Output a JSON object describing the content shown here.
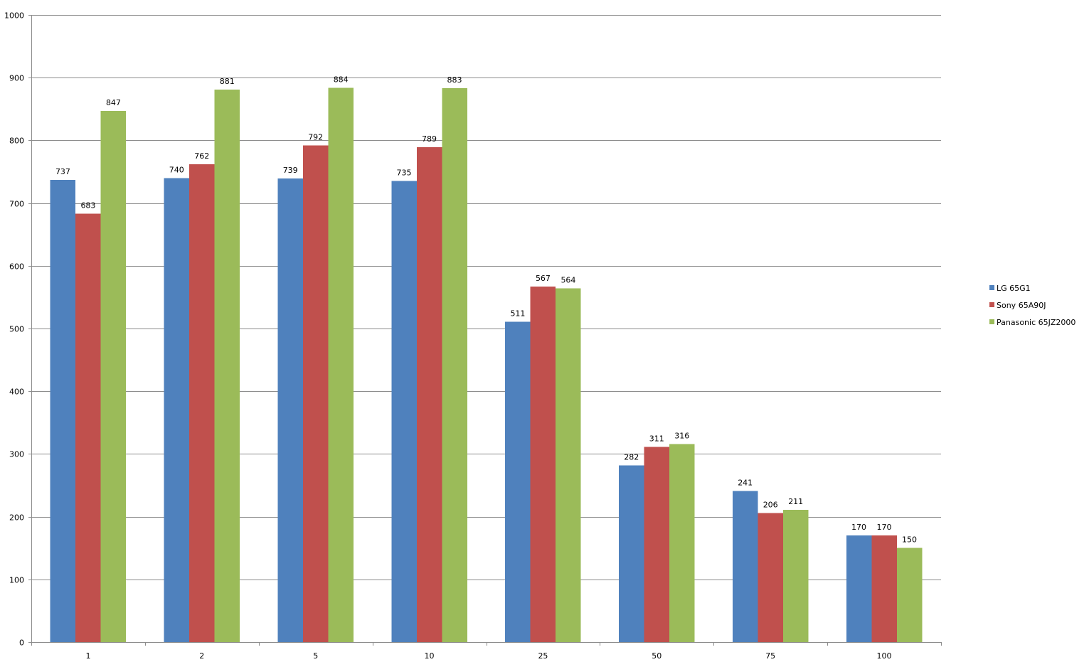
{
  "chart_data": {
    "type": "bar",
    "title": "",
    "xlabel": "",
    "ylabel": "",
    "categories": [
      "1",
      "2",
      "5",
      "10",
      "25",
      "50",
      "75",
      "100"
    ],
    "series": [
      {
        "name": "LG 65G1",
        "color": "#4f81bd",
        "values": [
          737,
          740,
          739,
          735,
          511,
          282,
          241,
          170
        ]
      },
      {
        "name": "Sony 65A90J",
        "color": "#c0504d",
        "values": [
          683,
          762,
          792,
          789,
          567,
          311,
          206,
          170
        ]
      },
      {
        "name": "Panasonic 65JZ2000",
        "color": "#9bbb59",
        "values": [
          847,
          881,
          884,
          883,
          564,
          316,
          211,
          150
        ]
      }
    ],
    "ylim": [
      0,
      1000
    ],
    "yticks": [
      0,
      100,
      200,
      300,
      400,
      500,
      600,
      700,
      800,
      900,
      1000
    ],
    "grid": true,
    "legend": "right",
    "data_labels": true
  }
}
